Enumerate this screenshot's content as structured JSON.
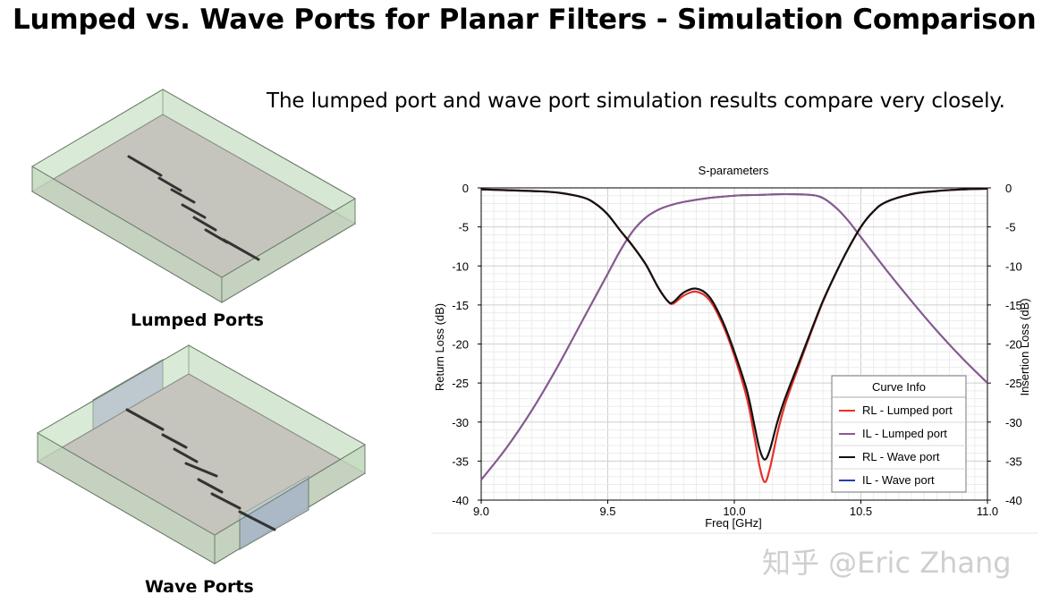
{
  "slide": {
    "title": "Lumped vs. Wave Ports for Planar Filters - Simulation Comparison",
    "subtitle": "The lumped port and wave port simulation results compare very closely.",
    "lumped_caption": "Lumped Ports",
    "wave_caption": "Wave Ports",
    "watermark": "知乎 @Eric Zhang"
  },
  "colors": {
    "rl_lumped": "#e8302a",
    "il_lumped": "#8a5a8c",
    "rl_wave": "#111111",
    "il_wave": "#2b3aa8",
    "box_top": "#d5e8d2",
    "substrate": "#b5aeab",
    "port_face": "#a9b6c6"
  },
  "chart_data": {
    "type": "line",
    "title": "S-parameters",
    "xlabel": "Freq [GHz]",
    "ylabel": "Return Loss (dB)",
    "y2label": "Insertion Loss (dB)",
    "xlim": [
      9.0,
      11.0
    ],
    "ylim": [
      -40,
      0
    ],
    "y2lim": [
      -40,
      0
    ],
    "x_ticks": [
      "9.0",
      "9.5",
      "10.0",
      "10.5",
      "11.0"
    ],
    "y_ticks": [
      "0",
      "-5",
      "-10",
      "-15",
      "-20",
      "-25",
      "-30",
      "-35",
      "-40"
    ],
    "grid": true,
    "legend": {
      "title": "Curve Info",
      "position": "bottom-right",
      "entries": [
        "RL - Lumped port",
        "IL - Lumped port",
        "RL - Wave port",
        "IL - Wave port"
      ]
    },
    "series": [
      {
        "name": "RL - Lumped port",
        "axis": "left",
        "points": [
          [
            9.0,
            -0.2
          ],
          [
            9.2,
            -0.4
          ],
          [
            9.3,
            -0.6
          ],
          [
            9.4,
            -1.2
          ],
          [
            9.45,
            -2.0
          ],
          [
            9.5,
            -3.4
          ],
          [
            9.55,
            -5.5
          ],
          [
            9.6,
            -7.5
          ],
          [
            9.65,
            -9.8
          ],
          [
            9.7,
            -12.8
          ],
          [
            9.74,
            -14.6
          ],
          [
            9.76,
            -14.8
          ],
          [
            9.8,
            -13.8
          ],
          [
            9.85,
            -13.3
          ],
          [
            9.9,
            -14.3
          ],
          [
            9.95,
            -17.2
          ],
          [
            10.0,
            -21.5
          ],
          [
            10.05,
            -27.0
          ],
          [
            10.08,
            -32.0
          ],
          [
            10.1,
            -35.7
          ],
          [
            10.12,
            -37.7
          ],
          [
            10.14,
            -36.0
          ],
          [
            10.17,
            -31.5
          ],
          [
            10.2,
            -27.8
          ],
          [
            10.25,
            -23.2
          ],
          [
            10.3,
            -18.8
          ],
          [
            10.35,
            -14.6
          ],
          [
            10.4,
            -11.0
          ],
          [
            10.45,
            -7.8
          ],
          [
            10.5,
            -5.0
          ],
          [
            10.55,
            -3.0
          ],
          [
            10.6,
            -1.8
          ],
          [
            10.7,
            -0.8
          ],
          [
            10.8,
            -0.4
          ],
          [
            10.9,
            -0.2
          ],
          [
            11.0,
            -0.1
          ]
        ]
      },
      {
        "name": "IL - Lumped port",
        "axis": "right",
        "points": [
          [
            9.0,
            -37.4
          ],
          [
            9.1,
            -33.3
          ],
          [
            9.2,
            -28.5
          ],
          [
            9.3,
            -23.0
          ],
          [
            9.4,
            -17.0
          ],
          [
            9.5,
            -11.0
          ],
          [
            9.55,
            -8.0
          ],
          [
            9.6,
            -5.5
          ],
          [
            9.65,
            -3.8
          ],
          [
            9.7,
            -2.8
          ],
          [
            9.75,
            -2.2
          ],
          [
            9.8,
            -1.8
          ],
          [
            9.9,
            -1.3
          ],
          [
            10.0,
            -1.0
          ],
          [
            10.1,
            -0.9
          ],
          [
            10.2,
            -0.8
          ],
          [
            10.3,
            -0.9
          ],
          [
            10.35,
            -1.3
          ],
          [
            10.4,
            -2.5
          ],
          [
            10.45,
            -4.2
          ],
          [
            10.5,
            -6.3
          ],
          [
            10.6,
            -10.5
          ],
          [
            10.7,
            -14.5
          ],
          [
            10.8,
            -18.3
          ],
          [
            10.9,
            -21.8
          ],
          [
            11.0,
            -25.0
          ]
        ]
      },
      {
        "name": "RL - Wave port",
        "axis": "left",
        "points": [
          [
            9.0,
            -0.2
          ],
          [
            9.2,
            -0.4
          ],
          [
            9.3,
            -0.6
          ],
          [
            9.4,
            -1.2
          ],
          [
            9.45,
            -2.0
          ],
          [
            9.5,
            -3.4
          ],
          [
            9.55,
            -5.5
          ],
          [
            9.6,
            -7.5
          ],
          [
            9.65,
            -9.8
          ],
          [
            9.7,
            -12.8
          ],
          [
            9.74,
            -14.6
          ],
          [
            9.76,
            -14.6
          ],
          [
            9.8,
            -13.4
          ],
          [
            9.85,
            -12.9
          ],
          [
            9.9,
            -13.9
          ],
          [
            9.95,
            -16.8
          ],
          [
            10.0,
            -21.0
          ],
          [
            10.05,
            -26.0
          ],
          [
            10.08,
            -30.5
          ],
          [
            10.1,
            -33.5
          ],
          [
            10.12,
            -34.8
          ],
          [
            10.14,
            -33.6
          ],
          [
            10.17,
            -30.0
          ],
          [
            10.2,
            -27.0
          ],
          [
            10.25,
            -22.8
          ],
          [
            10.3,
            -18.6
          ],
          [
            10.35,
            -14.5
          ],
          [
            10.4,
            -11.0
          ],
          [
            10.45,
            -7.8
          ],
          [
            10.5,
            -5.0
          ],
          [
            10.55,
            -3.0
          ],
          [
            10.6,
            -1.8
          ],
          [
            10.7,
            -0.8
          ],
          [
            10.8,
            -0.4
          ],
          [
            10.9,
            -0.2
          ],
          [
            11.0,
            -0.1
          ]
        ]
      },
      {
        "name": "IL - Wave port",
        "axis": "right",
        "points": [
          [
            9.0,
            -37.4
          ],
          [
            9.1,
            -33.3
          ],
          [
            9.2,
            -28.5
          ],
          [
            9.3,
            -23.0
          ],
          [
            9.4,
            -17.0
          ],
          [
            9.5,
            -11.0
          ],
          [
            9.55,
            -8.0
          ],
          [
            9.6,
            -5.5
          ],
          [
            9.65,
            -3.8
          ],
          [
            9.7,
            -2.8
          ],
          [
            9.75,
            -2.2
          ],
          [
            9.8,
            -1.8
          ],
          [
            9.9,
            -1.3
          ],
          [
            10.0,
            -1.0
          ],
          [
            10.1,
            -0.9
          ],
          [
            10.2,
            -0.8
          ],
          [
            10.3,
            -0.9
          ],
          [
            10.35,
            -1.3
          ],
          [
            10.4,
            -2.5
          ],
          [
            10.45,
            -4.2
          ],
          [
            10.5,
            -6.3
          ],
          [
            10.6,
            -10.5
          ],
          [
            10.7,
            -14.5
          ],
          [
            10.8,
            -18.3
          ],
          [
            10.9,
            -21.8
          ],
          [
            11.0,
            -25.0
          ]
        ]
      }
    ]
  }
}
